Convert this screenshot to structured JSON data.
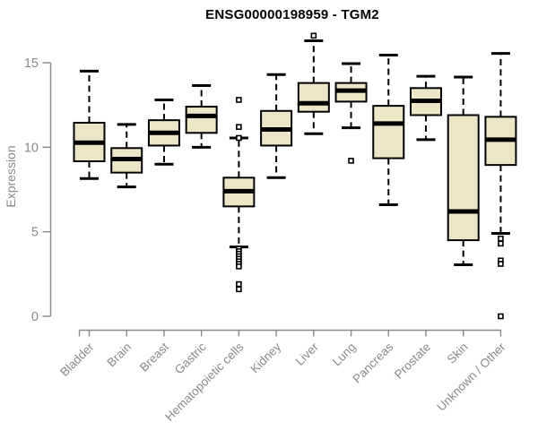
{
  "chart_data": {
    "type": "boxplot",
    "title": "ENSG00000198959 - TGM2",
    "ylabel": "Expression",
    "xlabel": "",
    "ylim": [
      0,
      15
    ],
    "y_ticks": [
      0,
      5,
      10,
      15
    ],
    "grid": false,
    "legend": "none",
    "categories": [
      "Bladder",
      "Brain",
      "Breast",
      "Gastric",
      "Hematopoietic cells",
      "Kidney",
      "Liver",
      "Lung",
      "Pancreas",
      "Prostate",
      "Skin",
      "Unknown / Other"
    ],
    "series": [
      {
        "name": "Bladder",
        "low": 8.15,
        "q1": 9.17,
        "median": 10.27,
        "q3": 11.45,
        "high": 14.5,
        "outliers": []
      },
      {
        "name": "Brain",
        "low": 7.65,
        "q1": 8.5,
        "median": 9.3,
        "q3": 9.95,
        "high": 11.35,
        "outliers": []
      },
      {
        "name": "Breast",
        "low": 9.0,
        "q1": 10.1,
        "median": 10.85,
        "q3": 11.6,
        "high": 12.8,
        "outliers": []
      },
      {
        "name": "Gastric",
        "low": 10.0,
        "q1": 10.85,
        "median": 11.85,
        "q3": 12.4,
        "high": 13.65,
        "outliers": []
      },
      {
        "name": "Hematopoietic cells",
        "low": 4.1,
        "q1": 6.5,
        "median": 7.4,
        "q3": 8.2,
        "high": 10.55,
        "outliers": [
          12.8,
          11.2,
          10.55,
          4.0,
          3.85,
          3.7,
          3.55,
          3.4,
          3.25,
          3.1,
          2.95,
          1.9,
          1.6
        ]
      },
      {
        "name": "Kidney",
        "low": 8.2,
        "q1": 10.1,
        "median": 11.05,
        "q3": 12.15,
        "high": 14.3,
        "outliers": []
      },
      {
        "name": "Liver",
        "low": 10.8,
        "q1": 12.1,
        "median": 12.6,
        "q3": 13.8,
        "high": 16.3,
        "outliers": [
          16.6
        ]
      },
      {
        "name": "Lung",
        "low": 11.15,
        "q1": 12.7,
        "median": 13.35,
        "q3": 13.8,
        "high": 14.95,
        "outliers": [
          9.2
        ]
      },
      {
        "name": "Pancreas",
        "low": 6.6,
        "q1": 9.35,
        "median": 11.4,
        "q3": 12.45,
        "high": 15.45,
        "outliers": []
      },
      {
        "name": "Prostate",
        "low": 10.45,
        "q1": 11.9,
        "median": 12.75,
        "q3": 13.5,
        "high": 14.2,
        "outliers": []
      },
      {
        "name": "Skin",
        "low": 3.05,
        "q1": 4.5,
        "median": 6.2,
        "q3": 11.9,
        "high": 14.15,
        "outliers": []
      },
      {
        "name": "Unknown / Other",
        "low": 4.9,
        "q1": 8.95,
        "median": 10.45,
        "q3": 11.8,
        "high": 15.55,
        "outliers": [
          4.6,
          4.3,
          3.3,
          3.1,
          0.0
        ]
      }
    ]
  },
  "colors": {
    "background": "#FFFFFF",
    "box_fill": "#ECE5C6",
    "box_stroke": "#000000",
    "median": "#000000",
    "whisker": "#000000",
    "outlier_stroke": "#000000",
    "outlier_fill": "#FFFFFF",
    "axis": "#8A8A8A",
    "tick_label": "#8A8A8A",
    "title": "#000000"
  }
}
